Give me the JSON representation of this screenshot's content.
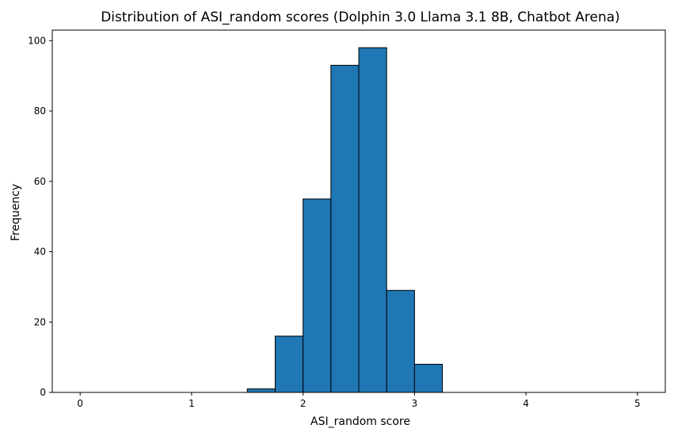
{
  "chart_data": {
    "type": "bar",
    "title": "Distribution of ASI_random scores (Dolphin 3.0 Llama 3.1 8B, Chatbot Arena)",
    "xlabel": "ASI_random score",
    "ylabel": "Frequency",
    "xlim": [
      -0.25,
      5.25
    ],
    "ylim": [
      0,
      103
    ],
    "xticks": [
      0,
      1,
      2,
      3,
      4,
      5
    ],
    "yticks": [
      0,
      20,
      40,
      60,
      80,
      100
    ],
    "bin_edges": [
      0,
      0.25,
      0.5,
      0.75,
      1.0,
      1.25,
      1.5,
      1.75,
      2.0,
      2.25,
      2.5,
      2.75,
      3.0,
      3.25,
      3.5,
      3.75,
      4.0,
      4.25,
      4.5,
      4.75,
      5.0
    ],
    "values": [
      0,
      0,
      0,
      0,
      0,
      0,
      1,
      16,
      55,
      93,
      98,
      29,
      8,
      0,
      0,
      0,
      0,
      0,
      0,
      0
    ],
    "bar_color": "#1f77b4",
    "edge_color": "#000000",
    "grid": false
  }
}
